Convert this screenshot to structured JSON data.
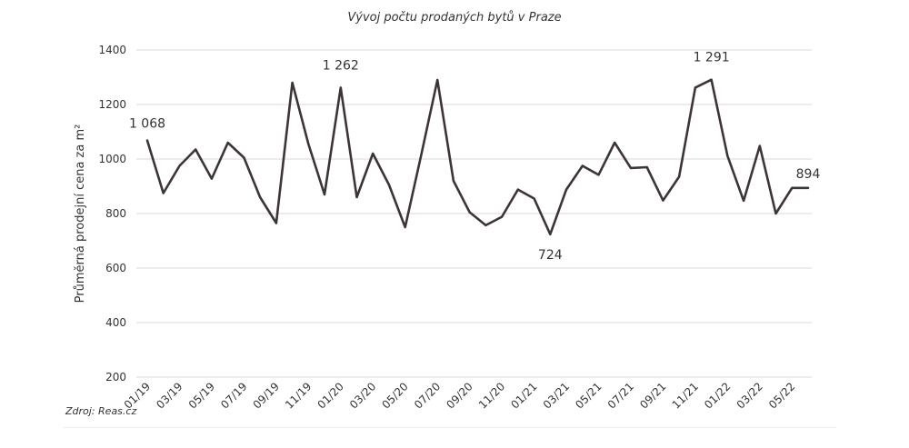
{
  "chart_data": {
    "type": "line",
    "title": "Vývoj počtu prodaných bytů v Praze",
    "ylabel": "Průměrná prodejní cena za m²",
    "xlabel": "",
    "source": "Zdroj: Reas.cz",
    "ylim": [
      200,
      1400
    ],
    "yticks": [
      200,
      400,
      600,
      800,
      1000,
      1200,
      1400
    ],
    "grid": true,
    "line_color": "#3d3437",
    "x_tick_labels": [
      "01/19",
      "03/19",
      "05/19",
      "07/19",
      "09/19",
      "11/19",
      "01/20",
      "03/20",
      "05/20",
      "07/20",
      "09/20",
      "11/20",
      "01/21",
      "03/21",
      "05/21",
      "07/21",
      "09/21",
      "11/21",
      "01/22",
      "03/22",
      "05/22"
    ],
    "x": [
      "01/19",
      "02/19",
      "03/19",
      "04/19",
      "05/19",
      "06/19",
      "07/19",
      "08/19",
      "09/19",
      "10/19",
      "11/19",
      "12/19",
      "01/20",
      "02/20",
      "03/20",
      "04/20",
      "05/20",
      "06/20",
      "07/20",
      "08/20",
      "09/20",
      "10/20",
      "11/20",
      "12/20",
      "01/21",
      "02/21",
      "03/21",
      "04/21",
      "05/21",
      "06/21",
      "07/21",
      "08/21",
      "09/21",
      "10/21",
      "11/21",
      "12/21",
      "01/22",
      "02/22",
      "03/22",
      "04/22",
      "05/22",
      "06/22"
    ],
    "series": [
      {
        "values": [
          1068,
          875,
          975,
          1035,
          928,
          1060,
          1005,
          860,
          765,
          1280,
          1055,
          870,
          1262,
          860,
          1020,
          905,
          750,
          1015,
          1290,
          920,
          805,
          757,
          788,
          888,
          855,
          724,
          888,
          975,
          942,
          1060,
          967,
          970,
          848,
          935,
          1262,
          1291,
          1012,
          847,
          1048,
          800,
          894,
          894
        ]
      }
    ],
    "annotations": [
      {
        "index": 0,
        "text": "1 068"
      },
      {
        "index": 12,
        "text": "1 262"
      },
      {
        "index": 25,
        "text": "724"
      },
      {
        "index": 35,
        "text": "1 291"
      },
      {
        "index": 41,
        "text": "894"
      }
    ]
  }
}
